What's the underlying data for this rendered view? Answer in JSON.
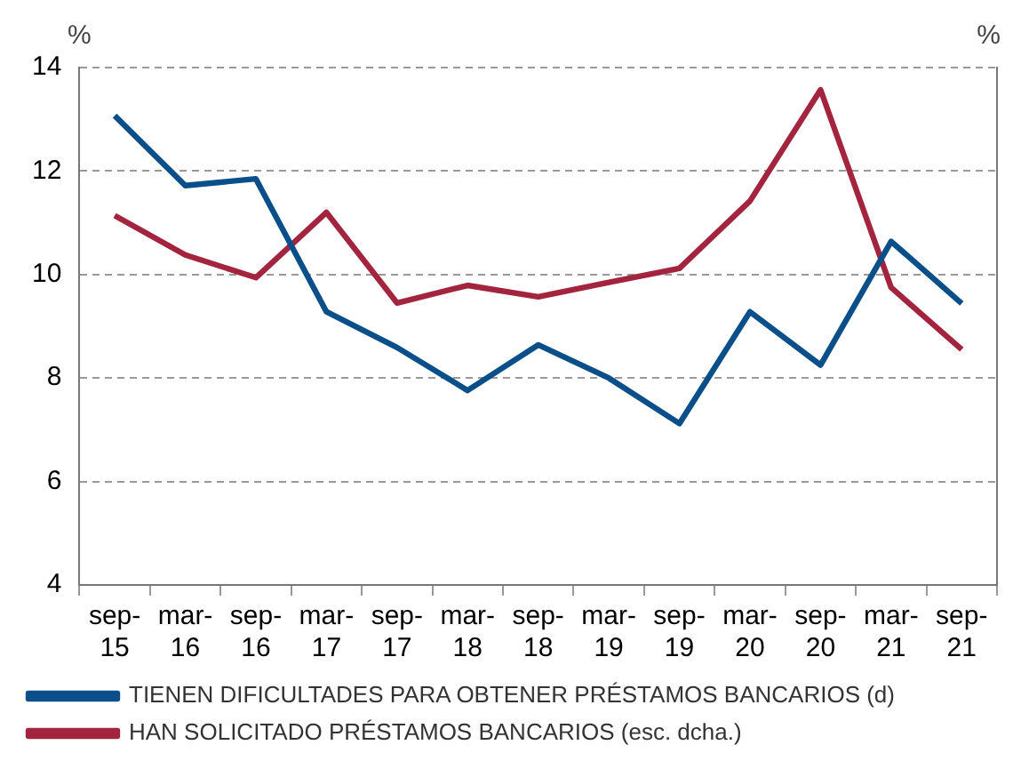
{
  "chart_data": {
    "type": "line",
    "categories": [
      "sep-15",
      "mar-16",
      "sep-16",
      "mar-17",
      "sep-17",
      "mar-18",
      "sep-18",
      "mar-19",
      "sep-19",
      "mar-20",
      "sep-20",
      "mar-21",
      "sep-21"
    ],
    "series": [
      {
        "name": "TIENEN DIFICULTADES PARA OBTENER PRÉSTAMOS BANCARIOS (d)",
        "color": "#0b4f8a",
        "values": [
          13.07,
          11.72,
          11.85,
          9.28,
          8.59,
          7.76,
          8.64,
          8.0,
          7.12,
          9.28,
          8.25,
          10.64,
          9.44
        ]
      },
      {
        "name": "HAN SOLICITADO PRÉSTAMOS BANCARIOS (esc. dcha.)",
        "color": "#a3243f",
        "values": [
          11.14,
          10.38,
          9.94,
          11.2,
          9.45,
          9.79,
          9.57,
          9.85,
          10.12,
          11.42,
          13.57,
          9.75,
          8.55
        ]
      }
    ],
    "ylabel": "%",
    "y2label": "%",
    "ylim": [
      4,
      14
    ],
    "yticks": [
      4,
      6,
      8,
      10,
      12,
      14
    ],
    "grid": "y",
    "legend": "bottom",
    "marker": "none",
    "line_style": "solid"
  }
}
